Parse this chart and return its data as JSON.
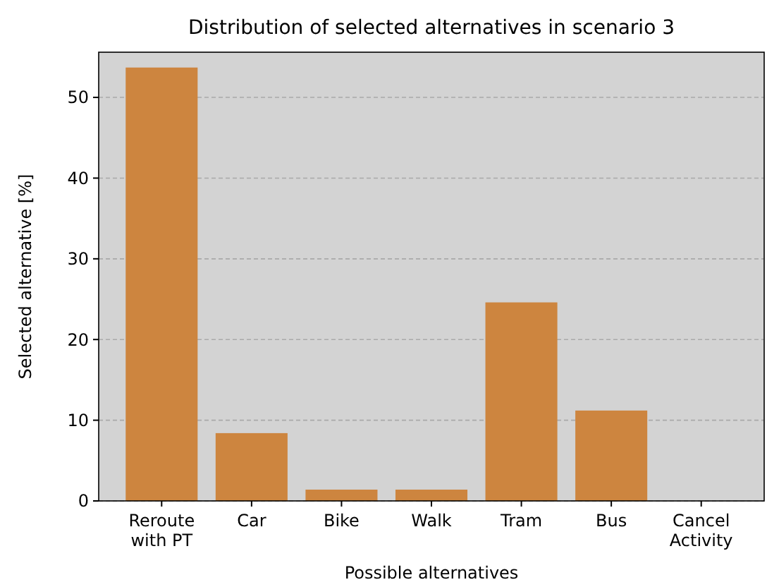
{
  "chart_data": {
    "type": "bar",
    "title": "Distribution of selected alternatives in scenario 3",
    "xlabel": "Possible alternatives",
    "ylabel": "Selected alternative [%]",
    "categories": [
      "Reroute\nwith PT",
      "Car",
      "Bike",
      "Walk",
      "Tram",
      "Bus",
      "Cancel\nActivity"
    ],
    "values": [
      53.7,
      8.4,
      1.4,
      1.4,
      24.6,
      11.2,
      0
    ],
    "color": "#cd853f",
    "ylim": [
      0,
      55.6
    ],
    "yticks": [
      0,
      10,
      20,
      30,
      40,
      50
    ],
    "grid": "y"
  }
}
